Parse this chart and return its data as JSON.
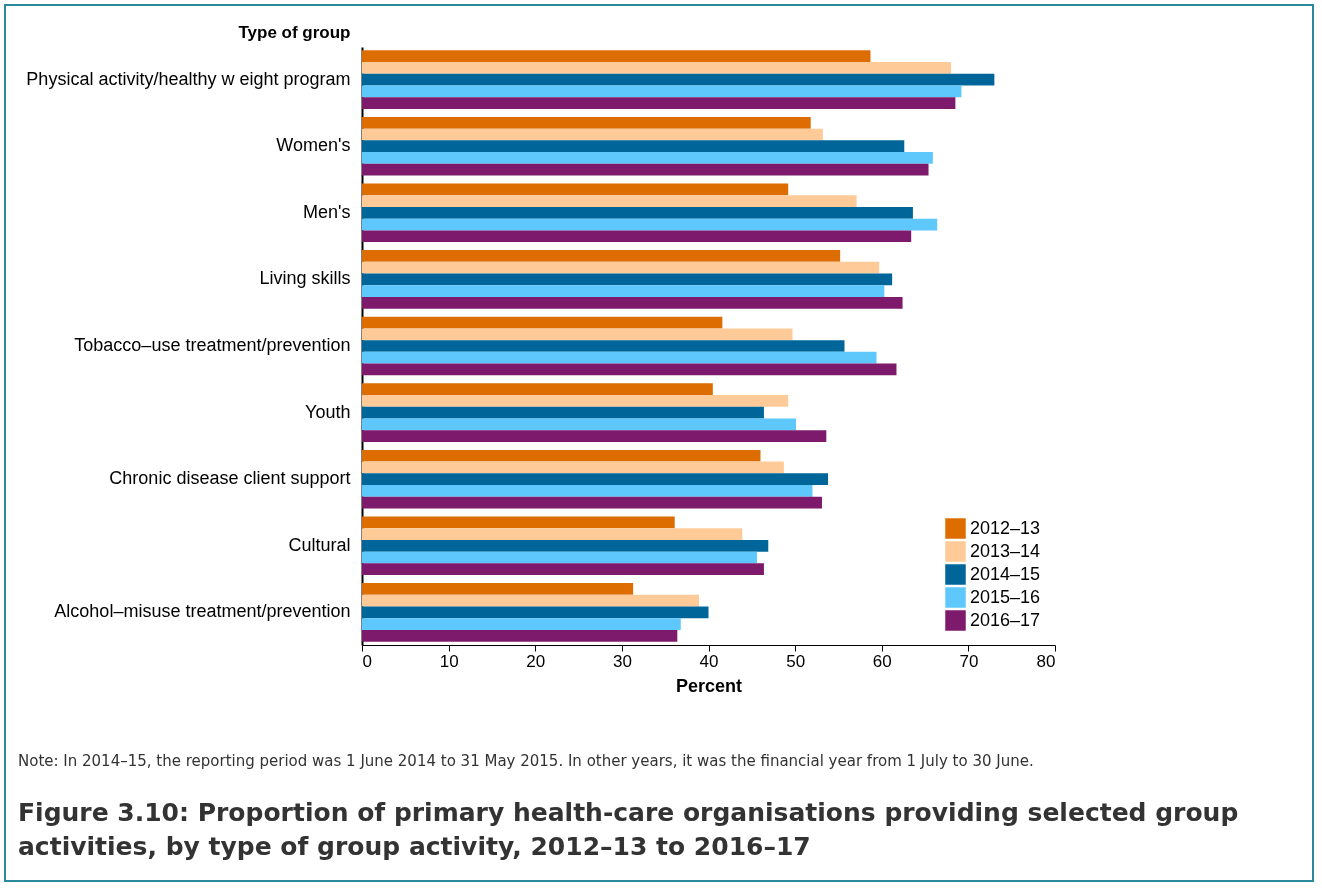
{
  "chart_data": {
    "type": "bar",
    "orientation": "horizontal",
    "title": "Figure 3.10: Proportion of primary health-care organisations providing selected group activities, by type of group activity, 2012–13 to 2016–17",
    "xlabel": "Percent",
    "ylabel": "Type of group",
    "annotations": [
      "Note: In 2014–15, the reporting period was 1 June 2014 to 31 May 2015. In other years, it was the financial year from 1 July to 30 June."
    ],
    "categories": [
      "Physical activity/healthy w eight program",
      "Women's",
      "Men's",
      "Living skills",
      "Tobacco–use treatment/prevention",
      "Youth",
      "Chronic disease client support",
      "Cultural",
      "Alcohol–misuse treatment/prevention"
    ],
    "series": [
      {
        "name": "2012–13",
        "color": "#dd6d00",
        "values": [
          58.7,
          51.8,
          49.2,
          55.2,
          41.6,
          40.5,
          46.0,
          36.1,
          31.3
        ]
      },
      {
        "name": "2013–14",
        "color": "#fecb98",
        "values": [
          68.0,
          53.2,
          57.1,
          59.7,
          49.7,
          49.2,
          48.7,
          43.9,
          38.9
        ]
      },
      {
        "name": "2014–15",
        "color": "#006699",
        "values": [
          73.0,
          62.6,
          63.6,
          61.2,
          55.7,
          46.4,
          53.8,
          46.9,
          40.0
        ]
      },
      {
        "name": "2015–16",
        "color": "#5ec8fd",
        "values": [
          69.2,
          65.9,
          66.4,
          60.3,
          59.4,
          50.1,
          52.0,
          45.6,
          36.8
        ]
      },
      {
        "name": "2016–17",
        "color": "#7d1a6b",
        "values": [
          68.5,
          65.4,
          63.4,
          62.4,
          61.7,
          53.6,
          53.1,
          46.4,
          36.4
        ]
      }
    ],
    "xlim": [
      0,
      80
    ],
    "xticks": [
      0,
      10,
      20,
      30,
      40,
      50,
      60,
      70,
      80
    ],
    "grid": false,
    "legend": "bottom right"
  }
}
